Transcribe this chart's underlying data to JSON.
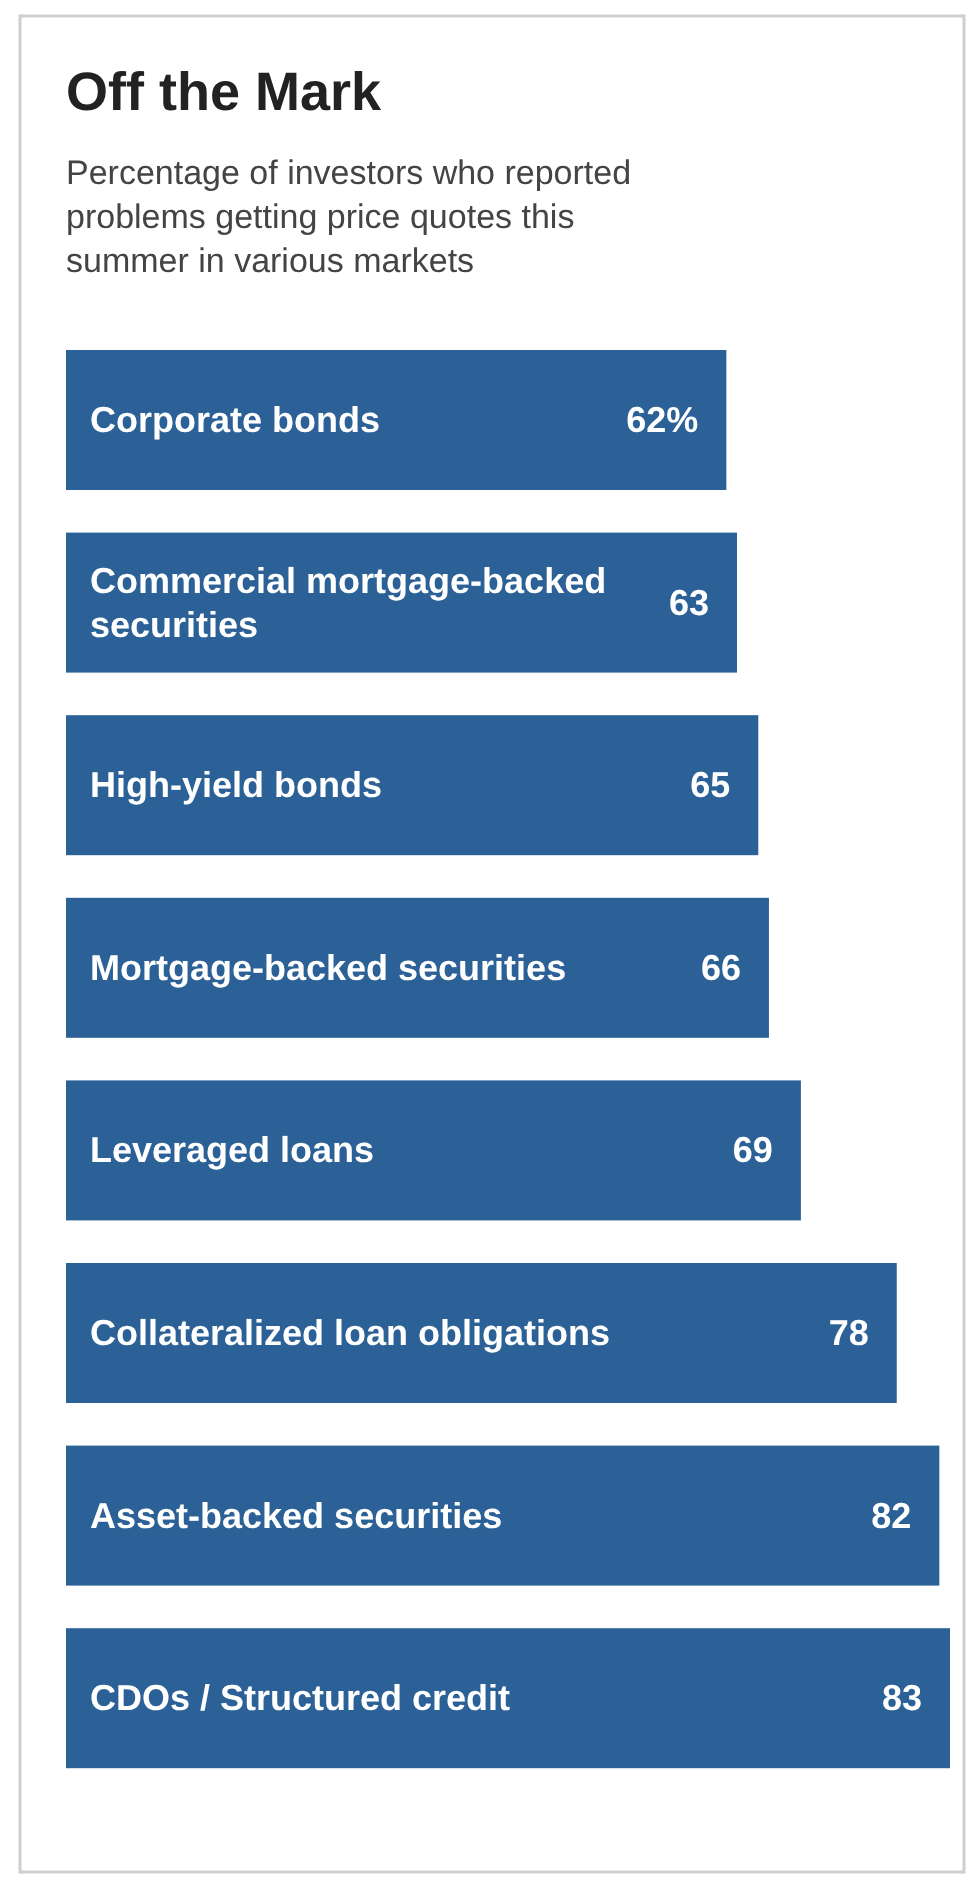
{
  "chart_data": {
    "type": "bar",
    "orientation": "horizontal",
    "title": "Off the Mark",
    "subtitle": "Percentage of investors who reported problems getting price quotes this summer in various markets",
    "categories": [
      "Corporate bonds",
      "Commercial mortgage-backed securities",
      "High-yield bonds",
      "Mortgage-backed securities",
      "Leveraged loans",
      "Collateralized loan obligations",
      "Asset-backed securities",
      "CDOs / Structured credit"
    ],
    "values": [
      62,
      63,
      65,
      66,
      69,
      78,
      82,
      83
    ],
    "value_labels": [
      "62%",
      "63",
      "65",
      "66",
      "69",
      "78",
      "82",
      "83"
    ],
    "color": "#2b6196"
  }
}
